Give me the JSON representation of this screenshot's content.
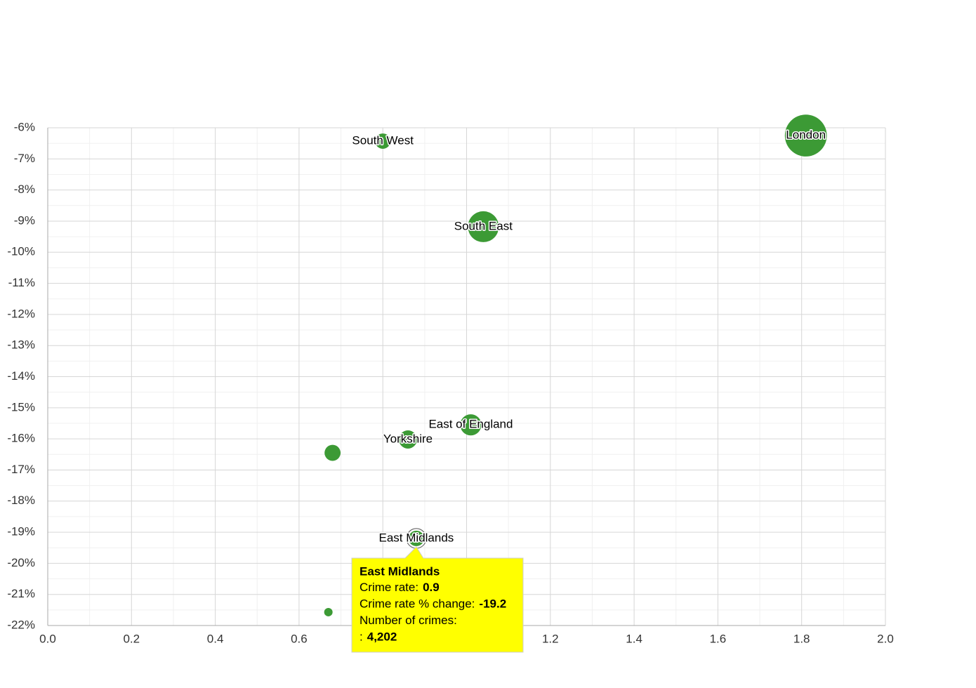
{
  "chart_data": {
    "type": "bubble",
    "color": "#3c9a35",
    "grid": true,
    "minor_grid": true,
    "xlim": [
      0,
      2
    ],
    "xticks": [
      {
        "value": 0,
        "label": "0.0"
      },
      0.2,
      0.4,
      0.6,
      0.8,
      {
        "value": 1,
        "label": "1.0"
      },
      1.2,
      1.4,
      1.6,
      1.8,
      {
        "value": 2,
        "label": "2.0"
      }
    ],
    "ylim": [
      -22,
      -6
    ],
    "yticks": [
      {
        "value": -6,
        "label": "-6%"
      },
      {
        "value": -7,
        "label": "-7%"
      },
      {
        "value": -8,
        "label": "-8%"
      },
      {
        "value": -9,
        "label": "-9%"
      },
      {
        "value": -10,
        "label": "-10%"
      },
      {
        "value": -11,
        "label": "-11%"
      },
      {
        "value": -12,
        "label": "-12%"
      },
      {
        "value": -13,
        "label": "-13%"
      },
      {
        "value": -14,
        "label": "-14%"
      },
      {
        "value": -15,
        "label": "-15%"
      },
      {
        "value": -16,
        "label": "-16%"
      },
      {
        "value": -17,
        "label": "-17%"
      },
      {
        "value": -18,
        "label": "-18%"
      },
      {
        "value": -19,
        "label": "-19%"
      },
      {
        "value": -20,
        "label": "-20%"
      },
      {
        "value": -21,
        "label": "-21%"
      },
      {
        "value": -22,
        "label": "-22%"
      }
    ],
    "labels": [
      "South West",
      "London",
      "South East",
      "East of England",
      "Yorkshire",
      null,
      "East Midlands",
      null
    ],
    "x": [
      0.8,
      1.81,
      1.04,
      1.01,
      0.86,
      0.68,
      0.88,
      0.67
    ],
    "values": [
      -6.43,
      -6.25,
      -9.18,
      -15.55,
      -16.02,
      -16.45,
      -19.2,
      -21.57
    ],
    "sizes": [
      3500,
      26000,
      14100,
      6600,
      4900,
      3800,
      4202,
      1050
    ],
    "highlight": 6,
    "tooltip": {
      "title": "East Midlands",
      "lines": [
        {
          "label": "Crime rate:",
          "value": "0.9"
        },
        {
          "label": "Crime rate % change:",
          "value": "-19.2"
        },
        {
          "label": "Number of crimes:"
        },
        {
          "label": ":",
          "value": "4,202"
        }
      ]
    }
  }
}
